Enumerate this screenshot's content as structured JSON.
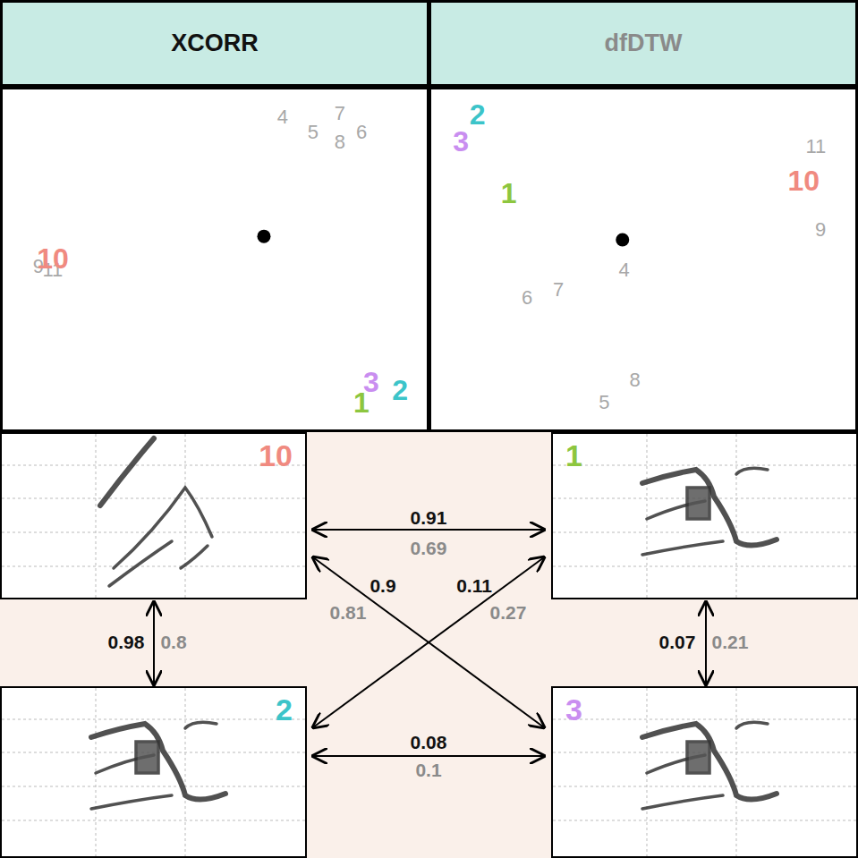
{
  "chart_data": [
    {
      "type": "scatter",
      "title": "XCORR",
      "xlim": [
        0,
        100
      ],
      "ylim": [
        0,
        100
      ],
      "tick_labels": false,
      "grid": false,
      "color": "#a8a8a8",
      "center": [
        61.6,
        56.8
      ],
      "points": [
        {
          "label": "4",
          "x": 66.0,
          "y": 92.1,
          "color": "#a8a8a8"
        },
        {
          "label": "5",
          "x": 73.2,
          "y": 87.6,
          "color": "#a8a8a8"
        },
        {
          "label": "7",
          "x": 79.5,
          "y": 92.9,
          "color": "#a8a8a8"
        },
        {
          "label": "8",
          "x": 79.5,
          "y": 84.5,
          "color": "#a8a8a8"
        },
        {
          "label": "6",
          "x": 84.6,
          "y": 87.4,
          "color": "#a8a8a8"
        },
        {
          "label": "9",
          "x": 8.4,
          "y": 47.9,
          "color": "#a8a8a8"
        },
        {
          "label": "11",
          "x": 11.8,
          "y": 47.1,
          "color": "#a8a8a8"
        },
        {
          "label": "10",
          "x": 11.8,
          "y": 50.3,
          "color": "#f08a80"
        },
        {
          "label": "3",
          "x": 86.9,
          "y": 13.9,
          "color": "#c98ef0"
        },
        {
          "label": "2",
          "x": 93.7,
          "y": 11.6,
          "color": "#3cc4c9"
        },
        {
          "label": "1",
          "x": 84.6,
          "y": 7.9,
          "color": "#8dc63f"
        }
      ]
    },
    {
      "type": "scatter",
      "title": "dfDTW",
      "xlim": [
        0,
        100
      ],
      "ylim": [
        0,
        100
      ],
      "tick_labels": false,
      "grid": false,
      "color": "#a8a8a8",
      "center": [
        45.1,
        55.8
      ],
      "points": [
        {
          "label": "2",
          "x": 10.9,
          "y": 92.6,
          "color": "#3cc4c9"
        },
        {
          "label": "3",
          "x": 7.0,
          "y": 84.7,
          "color": "#c98ef0"
        },
        {
          "label": "1",
          "x": 18.3,
          "y": 69.5,
          "color": "#8dc63f"
        },
        {
          "label": "11",
          "x": 90.7,
          "y": 83.2,
          "color": "#a8a8a8"
        },
        {
          "label": "10",
          "x": 87.8,
          "y": 73.2,
          "color": "#f08a80"
        },
        {
          "label": "9",
          "x": 91.8,
          "y": 58.7,
          "color": "#a8a8a8"
        },
        {
          "label": "4",
          "x": 45.5,
          "y": 47.1,
          "color": "#a8a8a8"
        },
        {
          "label": "6",
          "x": 22.6,
          "y": 38.9,
          "color": "#a8a8a8"
        },
        {
          "label": "7",
          "x": 30.0,
          "y": 41.1,
          "color": "#a8a8a8"
        },
        {
          "label": "8",
          "x": 48.0,
          "y": 14.7,
          "color": "#a8a8a8"
        },
        {
          "label": "5",
          "x": 40.8,
          "y": 7.9,
          "color": "#a8a8a8"
        }
      ]
    }
  ],
  "spectrograms": [
    "10",
    "1",
    "2",
    "3"
  ],
  "comparisons": [
    {
      "pair": [
        "10",
        "1"
      ],
      "XCORR": 0.91,
      "dfDTW": 0.69
    },
    {
      "pair": [
        "10",
        "3"
      ],
      "XCORR": 0.9,
      "dfDTW": 0.81
    },
    {
      "pair": [
        "2",
        "1"
      ],
      "XCORR": 0.11,
      "dfDTW": 0.27
    },
    {
      "pair": [
        "10",
        "2"
      ],
      "XCORR": 0.98,
      "dfDTW": 0.8
    },
    {
      "pair": [
        "1",
        "3"
      ],
      "XCORR": 0.07,
      "dfDTW": 0.21
    },
    {
      "pair": [
        "2",
        "3"
      ],
      "XCORR": 0.08,
      "dfDTW": 0.1
    }
  ]
}
